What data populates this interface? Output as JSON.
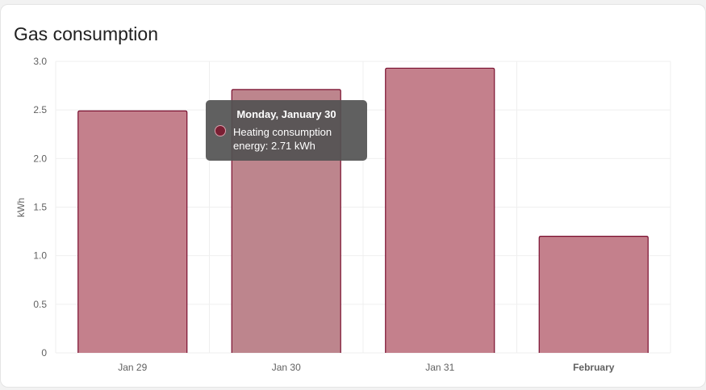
{
  "card": {
    "title": "Gas consumption"
  },
  "tooltip": {
    "title": "Monday, January 30",
    "series_label": "Heating consumption",
    "value_text": "energy: 2.71 kWh"
  },
  "colors": {
    "bar_fill": "#c4808c",
    "bar_fill_highlight": "#bd858d",
    "bar_stroke": "#7a1030",
    "grid": "#efefef",
    "tooltip_swatch": "#7a1f33"
  },
  "chart_data": {
    "type": "bar",
    "categories": [
      "Jan 29",
      "Jan 30",
      "Jan 31",
      "February"
    ],
    "bold_categories": [
      "February"
    ],
    "series": [
      {
        "name": "Heating consumption",
        "values": [
          2.49,
          2.71,
          2.93,
          1.2
        ]
      }
    ],
    "ylabel": "kWh",
    "ylim": [
      0,
      3.0
    ],
    "yticks": [
      "0",
      "0.5",
      "1.0",
      "1.5",
      "2.0",
      "2.5",
      "3.0"
    ],
    "highlighted_category": "Jan 30",
    "grid": true
  }
}
